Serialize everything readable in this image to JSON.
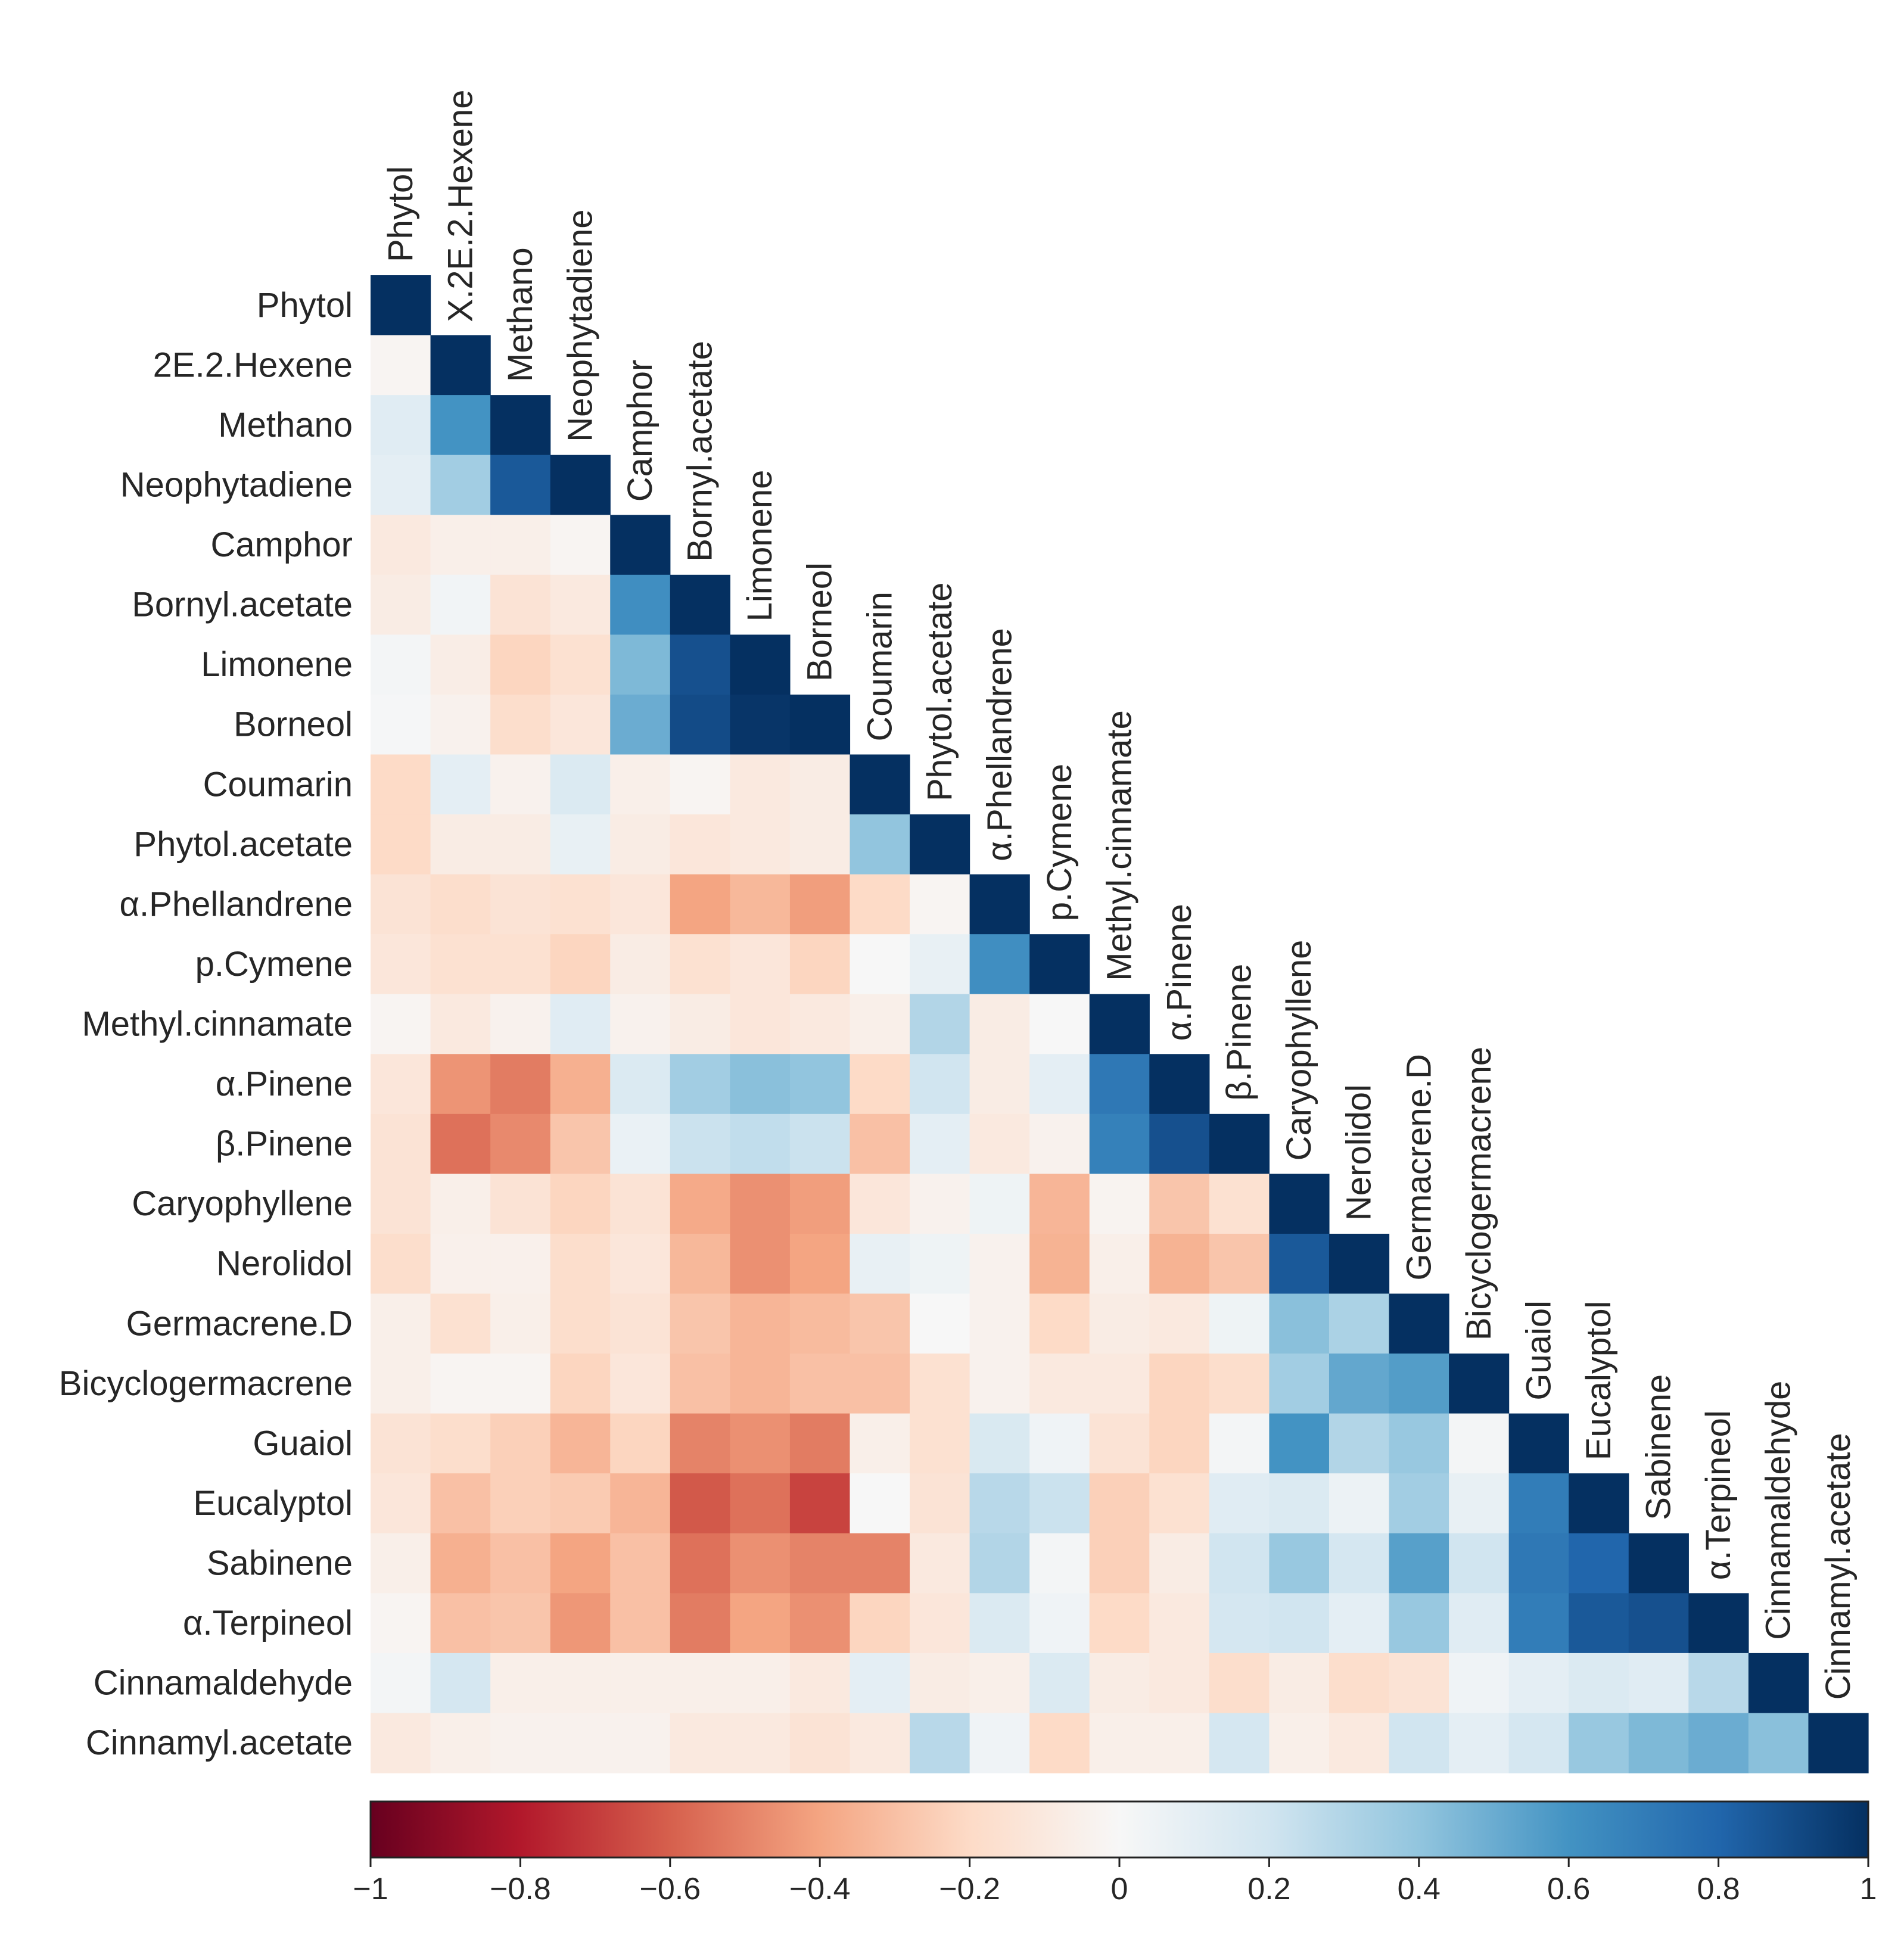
{
  "chart_data": {
    "type": "heatmap",
    "title": "",
    "layout": "lower-triangle",
    "row_labels": [
      "Phytol",
      "2E.2.Hexene",
      "Methano",
      "Neophytadiene",
      "Camphor",
      "Bornyl.acetate",
      "Limonene",
      "Borneol",
      "Coumarin",
      "Phytol.acetate",
      "α.Phellandrene",
      "p.Cymene",
      "Methyl.cinnamate",
      "α.Pinene",
      "β.Pinene",
      "Caryophyllene",
      "Nerolidol",
      "Germacrene.D",
      "Bicyclogermacrene",
      "Guaiol",
      "Eucalyptol",
      "Sabinene",
      "α.Terpineol",
      "Cinnamaldehyde",
      "Cinnamyl.acetate"
    ],
    "column_labels": [
      "Phytol",
      "X.2E.2.Hexene",
      "Methano",
      "Neophytadiene",
      "Camphor",
      "Bornyl.acetate",
      "Limonene",
      "Borneol",
      "Coumarin",
      "Phytol.acetate",
      "α.Phellandrene",
      "p.Cymene",
      "Methyl.cinnamate",
      "α.Pinene",
      "β.Pinene",
      "Caryophyllene",
      "Nerolidol",
      "Germacrene.D",
      "Bicyclogermacrene",
      "Guaiol",
      "Eucalyptol",
      "Sabinene",
      "α.Terpineol",
      "Cinnamaldehyde",
      "Cinnamyl.acetate"
    ],
    "values": [
      [
        1
      ],
      [
        -0.02,
        1
      ],
      [
        0.12,
        0.6,
        1
      ],
      [
        0.1,
        0.35,
        0.85,
        1
      ],
      [
        -0.1,
        -0.06,
        -0.06,
        -0.02,
        1
      ],
      [
        -0.08,
        0.03,
        -0.14,
        -0.1,
        0.62,
        1
      ],
      [
        0.02,
        -0.07,
        -0.22,
        -0.16,
        0.45,
        0.88,
        1
      ],
      [
        0.01,
        -0.04,
        -0.18,
        -0.12,
        0.5,
        0.9,
        0.98,
        1
      ],
      [
        -0.2,
        0.1,
        -0.04,
        0.15,
        -0.06,
        -0.02,
        -0.1,
        -0.08,
        1
      ],
      [
        -0.2,
        -0.08,
        -0.08,
        0.08,
        -0.08,
        -0.12,
        -0.1,
        -0.08,
        0.4,
        1
      ],
      [
        -0.14,
        -0.18,
        -0.14,
        -0.16,
        -0.12,
        -0.4,
        -0.33,
        -0.42,
        -0.2,
        -0.02,
        1
      ],
      [
        -0.12,
        -0.16,
        -0.16,
        -0.22,
        -0.08,
        -0.16,
        -0.12,
        -0.22,
        0,
        0.08,
        0.62,
        1
      ],
      [
        -0.02,
        -0.1,
        -0.04,
        0.12,
        -0.04,
        -0.08,
        -0.12,
        -0.1,
        -0.06,
        0.3,
        -0.08,
        0,
        1
      ],
      [
        -0.12,
        -0.45,
        -0.52,
        -0.36,
        0.15,
        0.35,
        0.42,
        0.4,
        -0.2,
        0.2,
        -0.08,
        0.1,
        0.72,
        1
      ],
      [
        -0.14,
        -0.55,
        -0.48,
        -0.28,
        0.07,
        0.22,
        0.25,
        0.22,
        -0.3,
        0.1,
        -0.1,
        -0.04,
        0.68,
        0.88,
        1
      ],
      [
        -0.14,
        -0.06,
        -0.14,
        -0.22,
        -0.14,
        -0.38,
        -0.46,
        -0.42,
        -0.12,
        -0.04,
        0.05,
        -0.34,
        -0.03,
        -0.28,
        -0.16,
        1
      ],
      [
        -0.18,
        -0.05,
        -0.05,
        -0.18,
        -0.12,
        -0.33,
        -0.46,
        -0.4,
        0.08,
        0.05,
        -0.04,
        -0.35,
        -0.06,
        -0.35,
        -0.28,
        0.85,
        1
      ],
      [
        -0.06,
        -0.16,
        -0.06,
        -0.18,
        -0.14,
        -0.28,
        -0.34,
        -0.32,
        -0.28,
        0,
        -0.04,
        -0.2,
        -0.08,
        -0.1,
        0.05,
        0.42,
        0.32,
        1
      ],
      [
        -0.06,
        -0.02,
        -0.02,
        -0.22,
        -0.12,
        -0.3,
        -0.34,
        -0.3,
        -0.3,
        -0.16,
        -0.04,
        -0.1,
        -0.1,
        -0.22,
        -0.18,
        0.35,
        0.52,
        0.56,
        1
      ],
      [
        -0.14,
        -0.18,
        -0.24,
        -0.34,
        -0.22,
        -0.5,
        -0.46,
        -0.52,
        -0.06,
        -0.16,
        0.16,
        0.04,
        -0.14,
        -0.22,
        0.02,
        0.6,
        0.3,
        0.38,
        0.02,
        1
      ],
      [
        -0.12,
        -0.3,
        -0.24,
        -0.26,
        -0.34,
        -0.62,
        -0.55,
        -0.68,
        0,
        -0.14,
        0.28,
        0.22,
        -0.24,
        -0.16,
        0.12,
        0.15,
        0.06,
        0.35,
        0.08,
        0.7,
        1
      ],
      [
        -0.06,
        -0.36,
        -0.3,
        -0.4,
        -0.3,
        -0.55,
        -0.46,
        -0.5,
        -0.5,
        -0.1,
        0.3,
        0.02,
        -0.24,
        -0.08,
        0.2,
        0.38,
        0.18,
        0.55,
        0.2,
        0.72,
        0.8,
        1
      ],
      [
        -0.02,
        -0.3,
        -0.28,
        -0.44,
        -0.3,
        -0.52,
        -0.4,
        -0.46,
        -0.22,
        -0.12,
        0.15,
        0.04,
        -0.2,
        -0.1,
        0.18,
        0.2,
        0.1,
        0.38,
        0.12,
        0.7,
        0.85,
        0.88,
        1
      ],
      [
        0.02,
        0.18,
        -0.06,
        -0.06,
        -0.06,
        -0.06,
        -0.06,
        -0.1,
        0.1,
        -0.08,
        -0.06,
        0.15,
        -0.08,
        -0.1,
        -0.18,
        -0.08,
        -0.18,
        -0.14,
        0.04,
        0.1,
        0.15,
        0.12,
        0.28,
        1
      ],
      [
        -0.1,
        -0.06,
        -0.04,
        -0.04,
        -0.04,
        -0.1,
        -0.1,
        -0.14,
        -0.1,
        0.28,
        0.04,
        -0.2,
        -0.06,
        -0.06,
        0.18,
        -0.06,
        -0.1,
        0.2,
        0.1,
        0.18,
        0.38,
        0.45,
        0.5,
        0.42,
        1
      ]
    ],
    "colorbar": {
      "min": -1,
      "max": 1,
      "tick_values": [
        -1,
        -0.8,
        -0.6,
        -0.4,
        -0.2,
        0,
        0.2,
        0.4,
        0.6,
        0.8,
        1
      ],
      "tick_labels": [
        "−1",
        "−0.8",
        "−0.6",
        "−0.4",
        "−0.2",
        "0",
        "0.2",
        "0.4",
        "0.6",
        "0.8",
        "1"
      ],
      "colors": [
        "#67001f",
        "#b2182b",
        "#d6604d",
        "#f4a582",
        "#fddbc7",
        "#f7f7f7",
        "#d1e5f0",
        "#92c5de",
        "#4393c3",
        "#2166ac",
        "#053061"
      ]
    }
  }
}
